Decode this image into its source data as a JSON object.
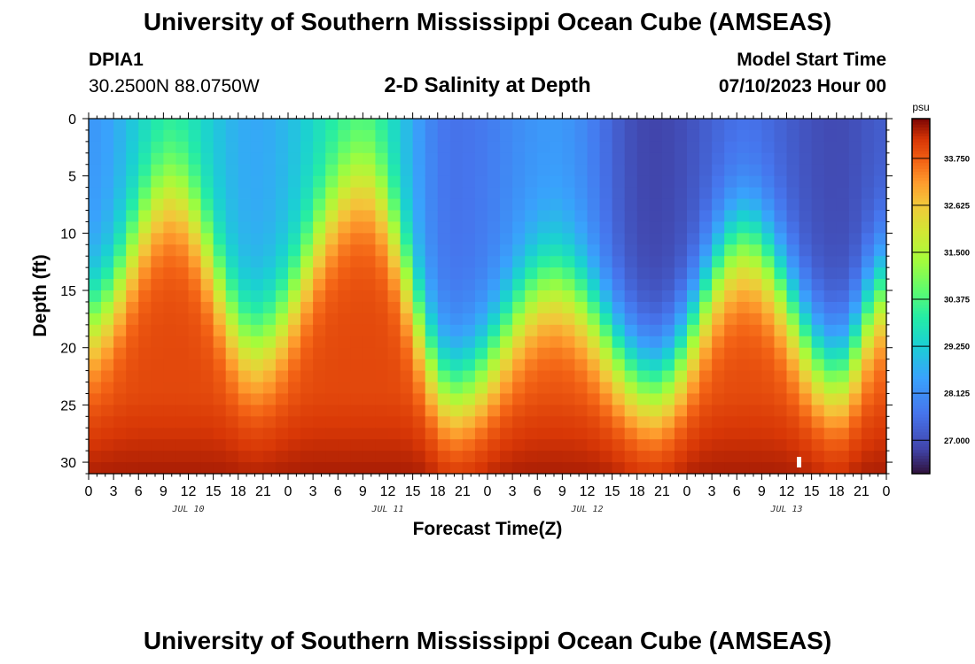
{
  "header": {
    "title": "University of Southern Mississippi Ocean Cube (AMSEAS)",
    "station": "DPIA1",
    "coords": "30.2500N  88.0750W",
    "subtitle": "2-D Salinity at Depth",
    "model_start_label": "Model Start Time",
    "model_start_value": "07/10/2023 Hour 00"
  },
  "footer": {
    "title": "University of Southern Mississippi Ocean Cube (AMSEAS)"
  },
  "chart_data": {
    "type": "heatmap",
    "title": "2-D Salinity at Depth",
    "xlabel": "Forecast Time(Z)",
    "ylabel": "Depth (ft)",
    "x_hours_range": [
      0,
      96
    ],
    "x_step_hours": 1.5,
    "y_range_ft": [
      0,
      31
    ],
    "y_step_ft": 1,
    "x_tick_labels": [
      "0",
      "3",
      "6",
      "9",
      "12",
      "15",
      "18",
      "21",
      "0",
      "3",
      "6",
      "9",
      "12",
      "15",
      "18",
      "21",
      "0",
      "3",
      "6",
      "9",
      "12",
      "15",
      "18",
      "21",
      "0",
      "3",
      "6",
      "9",
      "12",
      "15",
      "18",
      "21",
      "0"
    ],
    "date_labels": [
      {
        "label": "JUL 10",
        "hour": 12
      },
      {
        "label": "JUL 11",
        "hour": 36
      },
      {
        "label": "JUL 12",
        "hour": 60
      },
      {
        "label": "JUL 13",
        "hour": 84
      }
    ],
    "y_tick_labels": [
      "0",
      "5",
      "10",
      "15",
      "20",
      "25",
      "30"
    ],
    "y_tick_values": [
      0,
      5,
      10,
      15,
      20,
      25,
      30
    ],
    "colorbar": {
      "unit": "psu",
      "range": [
        26.2,
        34.7
      ],
      "tick_labels": [
        "33.750",
        "32.625",
        "31.500",
        "30.375",
        "29.250",
        "28.125",
        "27.000"
      ],
      "tick_values": [
        33.75,
        32.625,
        31.5,
        30.375,
        29.25,
        28.125,
        27.0
      ]
    },
    "halocline_depth_ft": [
      {
        "hour": 0,
        "depth": 17.5
      },
      {
        "hour": 10,
        "depth": 6.5
      },
      {
        "hour": 20,
        "depth": 19.5
      },
      {
        "hour": 33,
        "depth": 5.5
      },
      {
        "hour": 44,
        "depth": 23.5
      },
      {
        "hour": 56,
        "depth": 14.5
      },
      {
        "hour": 68,
        "depth": 23.0
      },
      {
        "hour": 79,
        "depth": 11.0
      },
      {
        "hour": 90,
        "depth": 22.0
      },
      {
        "hour": 96,
        "depth": 15.0
      }
    ],
    "surface_salinity_psu": [
      {
        "hour": 0,
        "value": 28.3
      },
      {
        "hour": 10,
        "value": 29.7
      },
      {
        "hour": 20,
        "value": 28.6
      },
      {
        "hour": 33,
        "value": 30.0
      },
      {
        "hour": 44,
        "value": 27.6
      },
      {
        "hour": 56,
        "value": 28.3
      },
      {
        "hour": 68,
        "value": 26.8
      },
      {
        "hour": 79,
        "value": 27.5
      },
      {
        "hour": 90,
        "value": 26.9
      },
      {
        "hour": 96,
        "value": 27.2
      }
    ],
    "bottom_salinity_psu": 34.0
  }
}
